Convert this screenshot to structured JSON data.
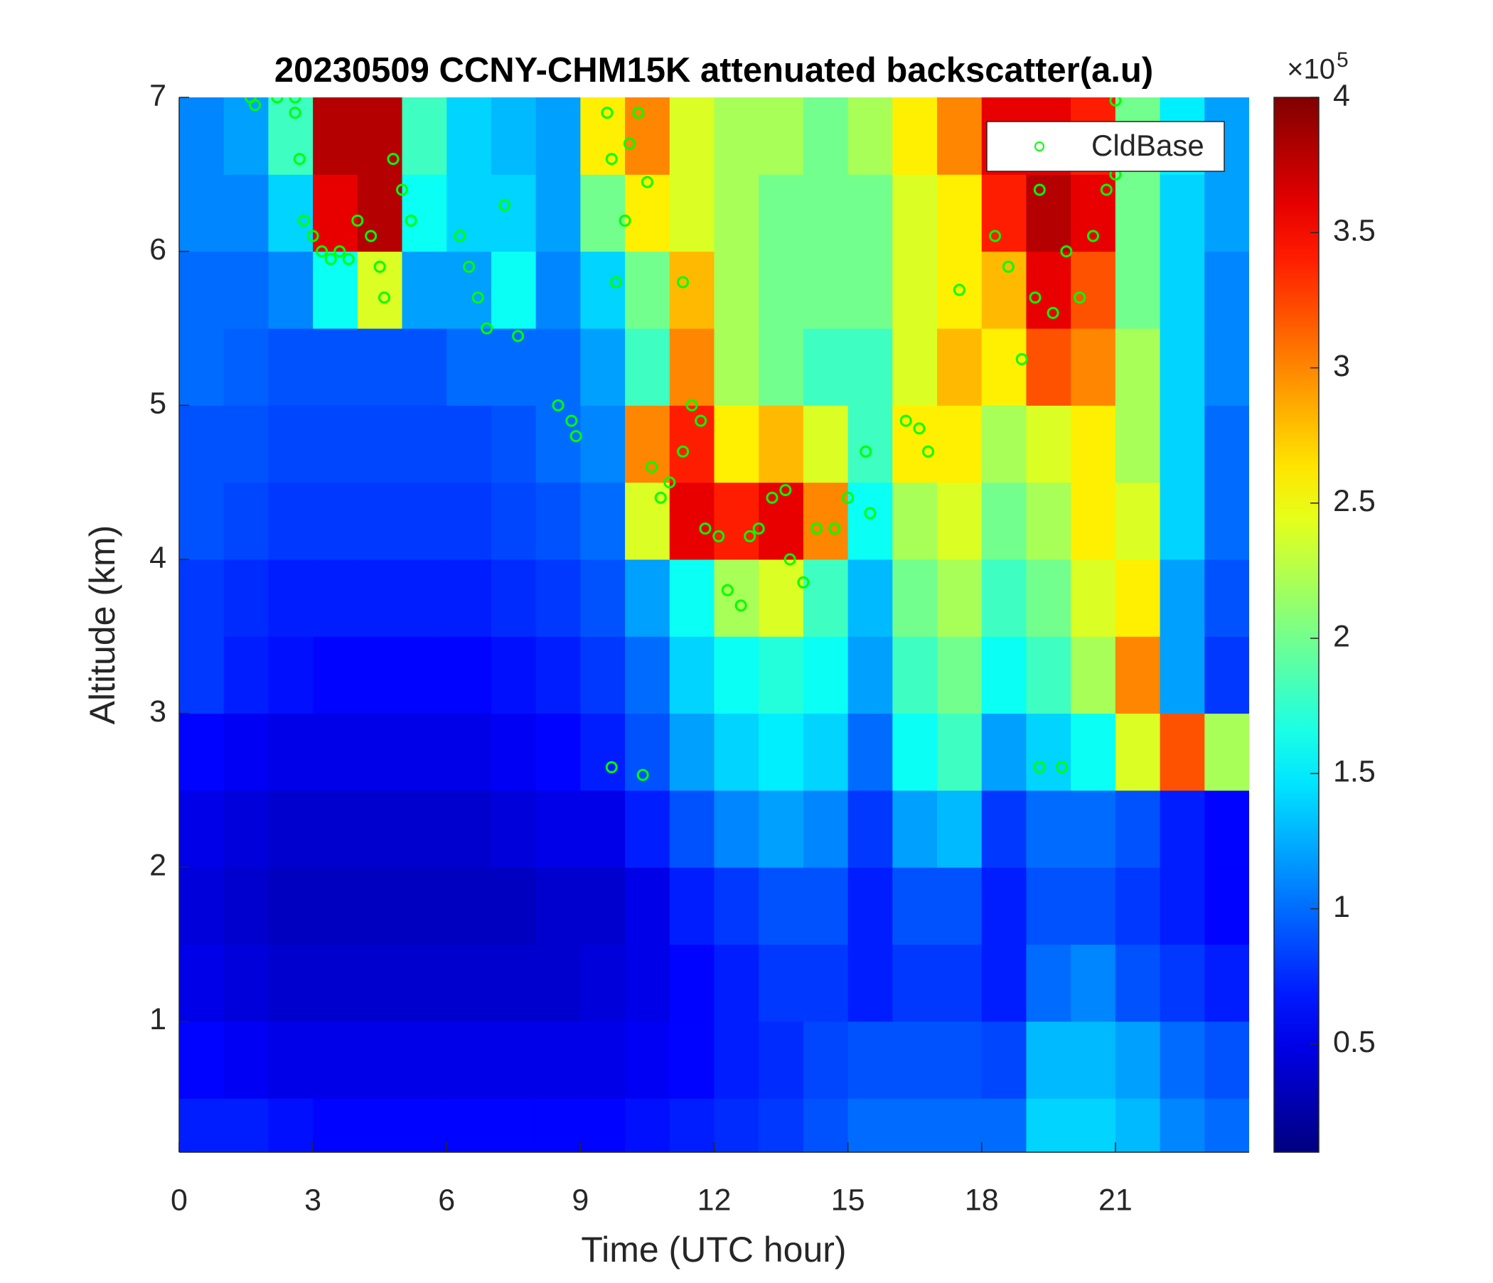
{
  "chart_data": {
    "type": "heatmap",
    "title": "20230509 CCNY-CHM15K attenuated backscatter(a.u)",
    "xlabel": "Time (UTC hour)",
    "ylabel": "Altitude (km)",
    "xlim": [
      0,
      24
    ],
    "xticks": [
      0,
      3,
      6,
      9,
      12,
      15,
      18,
      21
    ],
    "ylim": [
      0.15,
      7
    ],
    "yticks": [
      1,
      2,
      3,
      4,
      5,
      6,
      7
    ],
    "colormap": "jet",
    "clim": [
      0.1,
      4
    ],
    "colorbar_ticks": [
      0.5,
      1,
      1.5,
      2,
      2.5,
      3,
      3.5,
      4
    ],
    "colorbar_multiplier": "×10",
    "colorbar_exponent": "5",
    "legend_position": "upper right",
    "x": [
      0.5,
      1.5,
      2.5,
      3.5,
      4.5,
      5.5,
      6.5,
      7.5,
      8.5,
      9.5,
      10.5,
      11.5,
      12.5,
      13.5,
      14.5,
      15.5,
      16.5,
      17.5,
      18.5,
      19.5,
      20.5,
      21.5,
      22.5,
      23.5
    ],
    "y": [
      0.25,
      0.75,
      1.25,
      1.75,
      2.25,
      2.75,
      3.25,
      3.75,
      4.25,
      4.75,
      5.25,
      5.75,
      6.25,
      6.75
    ],
    "z": [
      [
        0.7,
        0.7,
        0.65,
        0.6,
        0.6,
        0.6,
        0.6,
        0.6,
        0.6,
        0.6,
        0.65,
        0.7,
        0.75,
        0.8,
        0.9,
        1.0,
        1.0,
        1.0,
        1.0,
        1.4,
        1.4,
        1.3,
        1.1,
        1.0
      ],
      [
        0.6,
        0.55,
        0.5,
        0.5,
        0.5,
        0.5,
        0.5,
        0.5,
        0.5,
        0.5,
        0.55,
        0.6,
        0.7,
        0.75,
        0.85,
        0.9,
        0.9,
        0.9,
        0.85,
        1.3,
        1.3,
        1.2,
        1.0,
        0.9
      ],
      [
        0.5,
        0.45,
        0.4,
        0.4,
        0.4,
        0.4,
        0.4,
        0.4,
        0.4,
        0.45,
        0.5,
        0.6,
        0.7,
        0.8,
        0.8,
        0.7,
        0.8,
        0.8,
        0.7,
        1.0,
        1.1,
        0.9,
        0.8,
        0.7
      ],
      [
        0.45,
        0.4,
        0.35,
        0.35,
        0.35,
        0.35,
        0.35,
        0.35,
        0.4,
        0.4,
        0.5,
        0.7,
        0.8,
        0.9,
        0.9,
        0.7,
        0.9,
        0.9,
        0.7,
        0.9,
        0.9,
        0.8,
        0.7,
        0.6
      ],
      [
        0.5,
        0.45,
        0.4,
        0.4,
        0.4,
        0.4,
        0.4,
        0.45,
        0.5,
        0.5,
        0.7,
        0.9,
        1.1,
        1.2,
        1.1,
        0.8,
        1.2,
        1.3,
        0.8,
        1.0,
        1.0,
        0.9,
        0.7,
        0.6
      ],
      [
        0.6,
        0.55,
        0.5,
        0.5,
        0.5,
        0.5,
        0.5,
        0.55,
        0.6,
        0.7,
        0.9,
        1.2,
        1.4,
        1.5,
        1.4,
        1.0,
        1.6,
        1.8,
        1.2,
        1.4,
        1.6,
        2.4,
        3.2,
        2.2
      ],
      [
        0.8,
        0.7,
        0.65,
        0.6,
        0.6,
        0.6,
        0.6,
        0.65,
        0.7,
        0.8,
        1.0,
        1.4,
        1.6,
        1.7,
        1.6,
        1.2,
        1.8,
        2.0,
        1.6,
        1.8,
        2.2,
        3.0,
        1.2,
        0.8
      ],
      [
        0.8,
        0.75,
        0.7,
        0.7,
        0.7,
        0.7,
        0.7,
        0.75,
        0.8,
        0.9,
        1.2,
        1.6,
        2.2,
        2.4,
        1.8,
        1.3,
        2.0,
        2.2,
        1.8,
        2.0,
        2.4,
        2.6,
        1.2,
        0.9
      ],
      [
        0.9,
        0.85,
        0.8,
        0.8,
        0.8,
        0.8,
        0.8,
        0.85,
        0.9,
        1.0,
        2.4,
        3.6,
        3.4,
        3.6,
        3.0,
        1.6,
        2.2,
        2.4,
        2.0,
        2.2,
        2.6,
        2.4,
        1.4,
        1.0
      ],
      [
        0.9,
        0.9,
        0.85,
        0.85,
        0.85,
        0.85,
        0.85,
        0.9,
        1.0,
        1.1,
        3.0,
        3.4,
        2.6,
        2.8,
        2.4,
        1.8,
        2.6,
        2.6,
        2.2,
        2.4,
        2.6,
        2.2,
        1.4,
        1.0
      ],
      [
        1.0,
        0.95,
        0.9,
        0.9,
        0.9,
        0.9,
        1.0,
        1.0,
        1.0,
        1.2,
        1.8,
        3.0,
        2.2,
        2.0,
        1.8,
        1.8,
        2.4,
        2.8,
        2.6,
        3.2,
        3.0,
        2.2,
        1.4,
        1.1
      ],
      [
        1.0,
        1.0,
        1.1,
        1.6,
        2.4,
        1.2,
        1.2,
        1.6,
        1.1,
        1.4,
        2.0,
        2.8,
        2.2,
        2.0,
        2.0,
        2.0,
        2.4,
        2.6,
        2.8,
        3.6,
        3.2,
        2.0,
        1.4,
        1.1
      ],
      [
        1.1,
        1.1,
        1.4,
        3.6,
        3.8,
        1.6,
        1.4,
        1.4,
        1.2,
        2.0,
        2.6,
        2.4,
        2.2,
        2.0,
        2.0,
        2.0,
        2.4,
        2.6,
        3.4,
        3.8,
        3.6,
        2.0,
        1.4,
        1.2
      ],
      [
        1.1,
        1.2,
        1.8,
        3.8,
        3.8,
        1.8,
        1.4,
        1.3,
        1.2,
        2.6,
        3.0,
        2.4,
        2.2,
        2.2,
        2.0,
        2.2,
        2.6,
        3.0,
        3.6,
        3.6,
        3.4,
        2.0,
        1.5,
        1.2
      ]
    ],
    "series": [
      {
        "name": "CldBase",
        "color": "#00ff00",
        "marker": "open-circle",
        "x": [
          1.6,
          1.7,
          2.2,
          2.6,
          2.6,
          2.7,
          2.8,
          3.0,
          3.2,
          3.4,
          3.6,
          3.8,
          4.0,
          4.3,
          4.5,
          4.6,
          4.8,
          5.0,
          5.2,
          6.3,
          6.5,
          6.7,
          6.9,
          7.3,
          7.6,
          8.5,
          8.8,
          8.9,
          9.6,
          9.7,
          9.8,
          10.0,
          10.1,
          10.3,
          10.5,
          9.7,
          10.4,
          10.6,
          10.8,
          11.0,
          11.3,
          11.3,
          11.5,
          11.7,
          11.8,
          12.1,
          12.3,
          12.6,
          12.8,
          13.0,
          13.3,
          13.6,
          13.7,
          14.0,
          14.3,
          14.7,
          15.0,
          15.5,
          15.4,
          16.3,
          16.6,
          16.8,
          17.5,
          18.3,
          18.6,
          18.9,
          19.2,
          19.3,
          19.6,
          19.9,
          20.2,
          20.5,
          20.8,
          21.0,
          21.0,
          19.3,
          19.8
        ],
        "values": [
          7.0,
          6.95,
          7.0,
          7.0,
          6.9,
          6.6,
          6.2,
          6.1,
          6.0,
          5.95,
          6.0,
          5.95,
          6.2,
          6.1,
          5.9,
          5.7,
          6.6,
          6.4,
          6.2,
          6.1,
          5.9,
          5.7,
          5.5,
          6.3,
          5.45,
          5.0,
          4.9,
          4.8,
          6.9,
          6.6,
          5.8,
          6.2,
          6.7,
          6.9,
          6.45,
          2.65,
          2.6,
          4.6,
          4.4,
          4.5,
          4.7,
          5.8,
          5.0,
          4.9,
          4.2,
          4.15,
          3.8,
          3.7,
          4.15,
          4.2,
          4.4,
          4.45,
          4.0,
          3.85,
          4.2,
          4.2,
          4.4,
          4.3,
          4.7,
          4.9,
          4.85,
          4.7,
          5.75,
          6.1,
          5.9,
          5.3,
          5.7,
          6.4,
          5.6,
          6.0,
          5.7,
          6.1,
          6.4,
          6.5,
          6.98,
          2.65,
          2.65
        ]
      }
    ]
  }
}
